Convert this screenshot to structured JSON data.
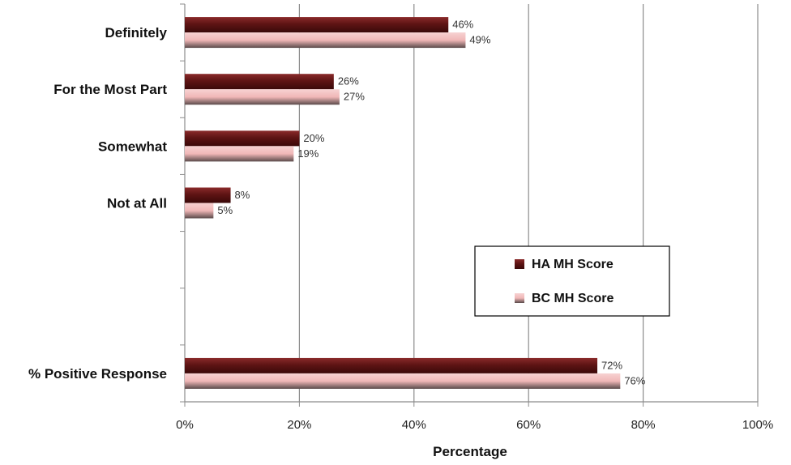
{
  "chart_data": {
    "type": "bar",
    "orientation": "horizontal",
    "categories": [
      "Definitely",
      "For the Most Part",
      "Somewhat",
      "Not at All",
      "",
      "",
      "% Positive Response"
    ],
    "series": [
      {
        "name": "HA MH Score",
        "color": "#6B1A1A",
        "values": [
          46,
          26,
          20,
          8,
          null,
          null,
          72
        ],
        "labels": [
          "46%",
          "26%",
          "20%",
          "8%",
          "",
          "",
          "72%"
        ]
      },
      {
        "name": "BC MH Score",
        "color": "#F2BDBD",
        "values": [
          49,
          27,
          19,
          5,
          null,
          null,
          76
        ],
        "labels": [
          "49%",
          "27%",
          "19%",
          "5%",
          "",
          "",
          "76%"
        ]
      }
    ],
    "xlabel": "Percentage",
    "xlim": [
      0,
      100
    ],
    "xticks": [
      0,
      20,
      40,
      60,
      80,
      100
    ],
    "xtick_labels": [
      "0%",
      "20%",
      "40%",
      "60%",
      "80%",
      "100%"
    ],
    "grid": true,
    "legend_position": "right-middle"
  }
}
